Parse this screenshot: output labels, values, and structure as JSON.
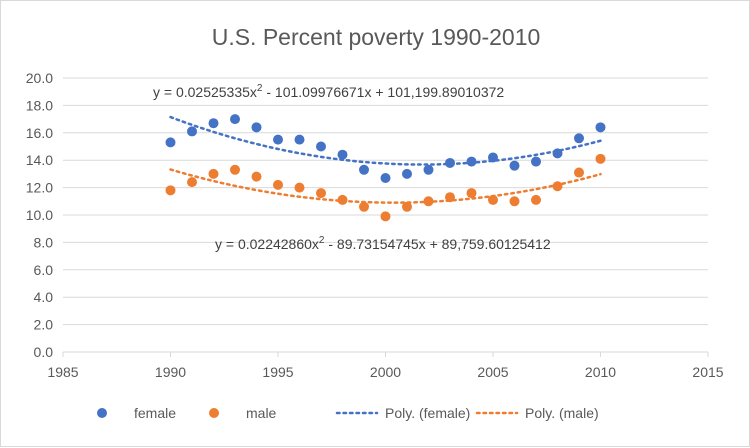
{
  "chart_data": {
    "type": "scatter",
    "title": "U.S. Percent poverty 1990-2010",
    "xlabel": "",
    "ylabel": "",
    "xlim": [
      1985,
      2015
    ],
    "ylim": [
      0,
      20
    ],
    "x_ticks": [
      "1985",
      "1990",
      "1995",
      "2000",
      "2005",
      "2010",
      "2015"
    ],
    "y_ticks": [
      "0.0",
      "2.0",
      "4.0",
      "6.0",
      "8.0",
      "10.0",
      "12.0",
      "14.0",
      "16.0",
      "18.0",
      "20.0"
    ],
    "grid": "horizontal",
    "legend_position": "bottom",
    "colors": {
      "female": "#4472c4",
      "male": "#ed7d31",
      "grid": "#d9d9d9",
      "text": "#595959"
    },
    "series": [
      {
        "name": "female",
        "marker": "circle",
        "x": [
          1990,
          1991,
          1992,
          1993,
          1994,
          1995,
          1996,
          1997,
          1998,
          1999,
          2000,
          2001,
          2002,
          2003,
          2004,
          2005,
          2006,
          2007,
          2008,
          2009,
          2010
        ],
        "y": [
          15.3,
          16.1,
          16.7,
          17.0,
          16.4,
          15.5,
          15.5,
          15.0,
          14.4,
          13.3,
          12.7,
          13.0,
          13.3,
          13.8,
          13.9,
          14.2,
          13.6,
          13.9,
          14.5,
          15.6,
          16.4
        ]
      },
      {
        "name": "male",
        "marker": "circle",
        "x": [
          1990,
          1991,
          1992,
          1993,
          1994,
          1995,
          1996,
          1997,
          1998,
          1999,
          2000,
          2001,
          2002,
          2003,
          2004,
          2005,
          2006,
          2007,
          2008,
          2009,
          2010
        ],
        "y": [
          11.8,
          12.4,
          13.0,
          13.3,
          12.8,
          12.2,
          12.0,
          11.6,
          11.1,
          10.6,
          9.9,
          10.6,
          11.0,
          11.3,
          11.6,
          11.1,
          11.0,
          11.1,
          12.1,
          13.1,
          14.1
        ]
      }
    ],
    "trendlines": [
      {
        "name": "Poly. (female)",
        "type": "polynomial",
        "order": 2,
        "style": "dotted",
        "equation": "y = 0.02525335x",
        "equation_exponent": "2",
        "equation_tail": " - 101.09976671x + 101,199.89010372",
        "coefficients": [
          0.02525335,
          -101.09976671,
          101199.89010372
        ]
      },
      {
        "name": "Poly. (male)",
        "type": "polynomial",
        "order": 2,
        "style": "dotted",
        "equation": "y = 0.02242860x",
        "equation_exponent": "2",
        "equation_tail": " - 89.73154745x + 89,759.60125412",
        "coefficients": [
          0.0224286,
          -89.73154745,
          89759.60125412
        ]
      }
    ],
    "legend": [
      {
        "label": "female",
        "kind": "marker",
        "series": "female"
      },
      {
        "label": "male",
        "kind": "marker",
        "series": "male"
      },
      {
        "label": "Poly. (female)",
        "kind": "dotted-line",
        "series": "female"
      },
      {
        "label": "Poly. (male)",
        "kind": "dotted-line",
        "series": "male"
      }
    ]
  }
}
